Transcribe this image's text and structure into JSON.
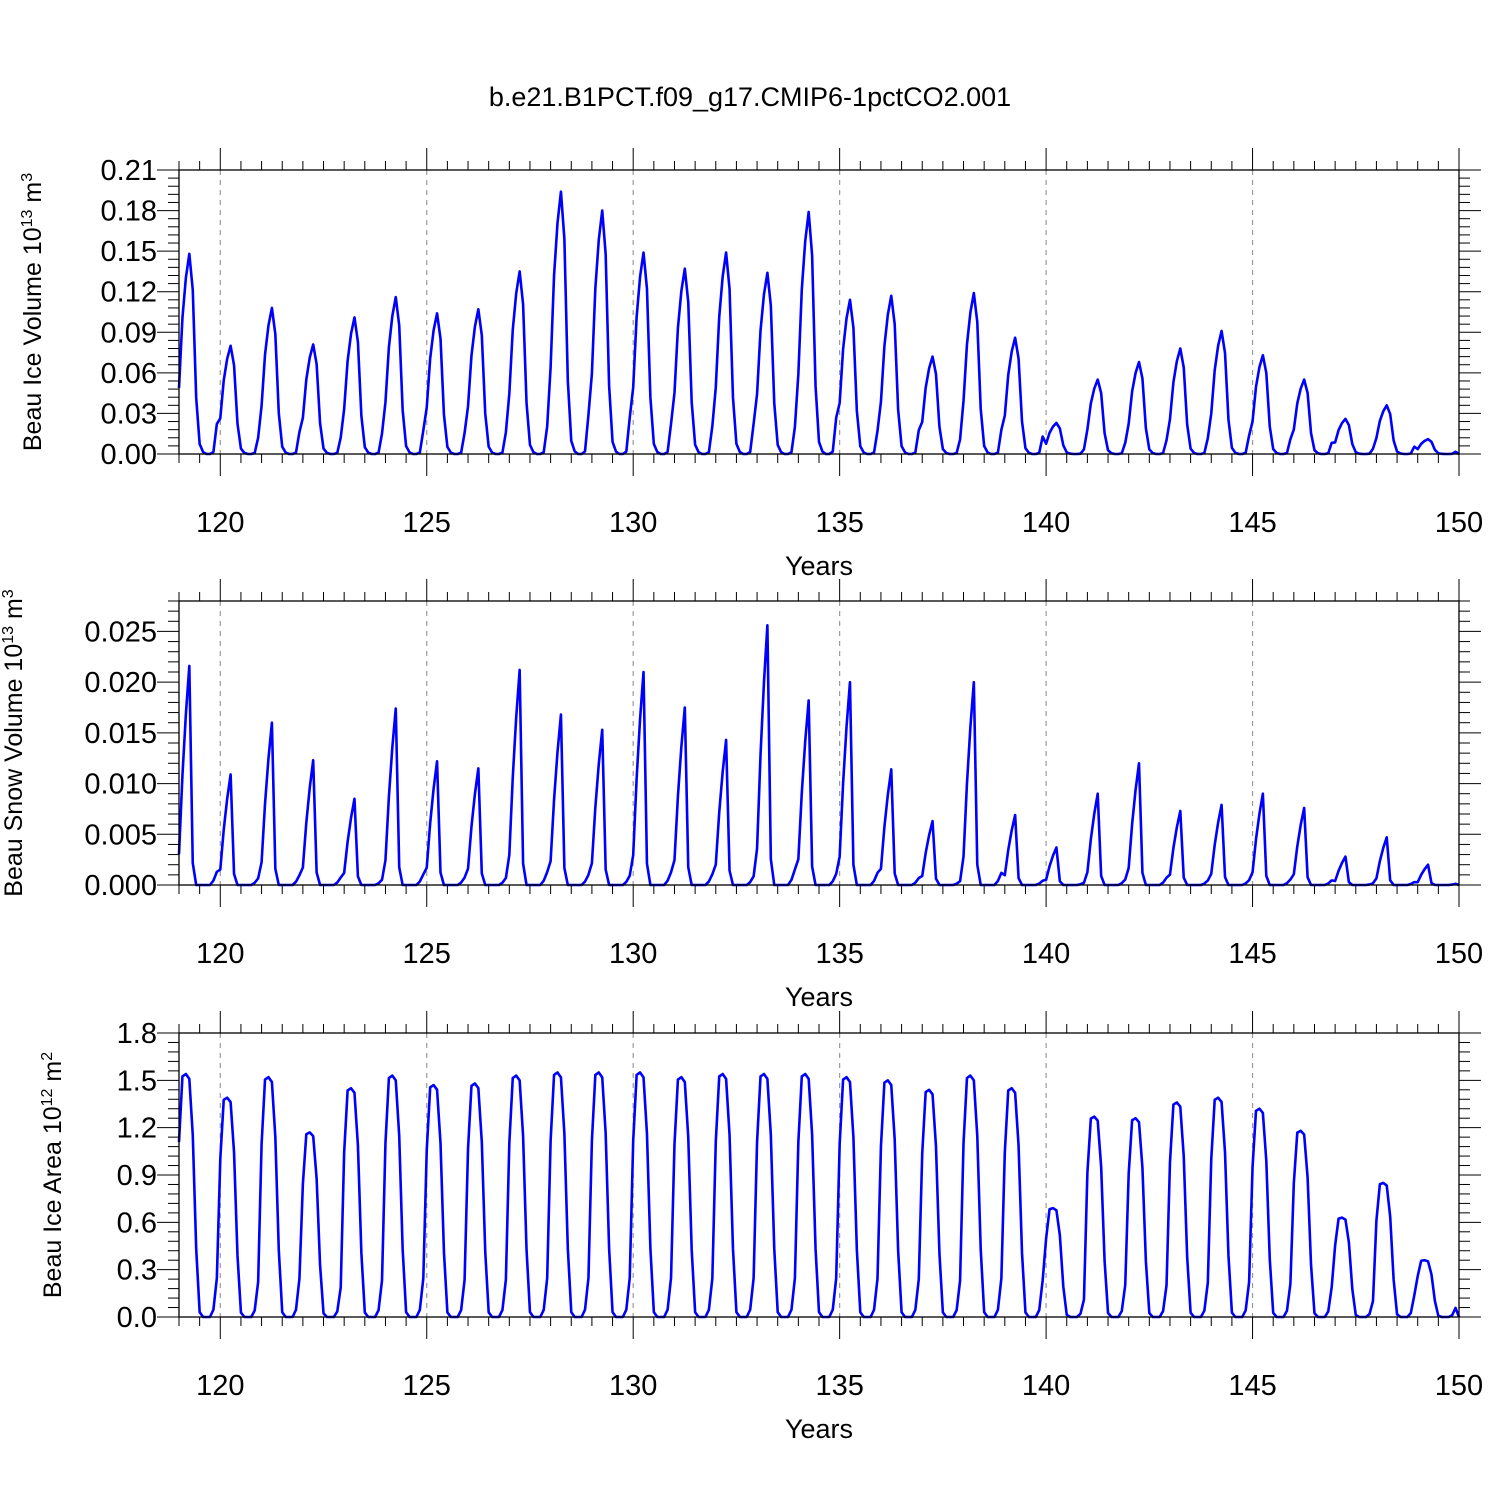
{
  "title": "b.e21.B1PCT.f09_g17.CMIP6-1pctCO2.001",
  "colors": {
    "series": "#0000ff",
    "axis": "#000000",
    "grid": "#999999"
  },
  "chart_data": [
    {
      "type": "line",
      "ylabel_main": "Beau Ice Volume 10",
      "ylabel_exp": "13",
      "ylabel_unit": " m",
      "ylabel_unit_exp": "3",
      "xlabel": "Years",
      "xlim": [
        119.0,
        150.0
      ],
      "ylim": [
        0.0,
        0.21
      ],
      "yticks": [
        "0.00",
        "0.03",
        "0.06",
        "0.09",
        "0.12",
        "0.15",
        "0.18",
        "0.21"
      ],
      "ytick_values": [
        0,
        0.03,
        0.06,
        0.09,
        0.12,
        0.15,
        0.18,
        0.21
      ],
      "xticks": [
        "120",
        "125",
        "130",
        "135",
        "140",
        "145",
        "150"
      ],
      "xtick_values": [
        120,
        125,
        130,
        135,
        140,
        145,
        150
      ],
      "grid_x": true,
      "seasonal_cycle": {
        "start_year": 119,
        "samples_per_year": 12,
        "shape": [
          0.33,
          0.68,
          0.88,
          1.0,
          0.82,
          0.28,
          0.05,
          0.01,
          0,
          0,
          0.01,
          0.15
        ]
      },
      "annual_peaks": [
        0.148,
        0.08,
        0.108,
        0.081,
        0.101,
        0.116,
        0.104,
        0.107,
        0.135,
        0.194,
        0.18,
        0.149,
        0.137,
        0.149,
        0.134,
        0.179,
        0.114,
        0.117,
        0.072,
        0.119,
        0.086,
        0.023,
        0.055,
        0.068,
        0.078,
        0.091,
        0.073,
        0.055,
        0.026,
        0.036,
        0.011
      ]
    },
    {
      "type": "line",
      "ylabel_main": "Beau Snow Volume 10",
      "ylabel_exp": "13",
      "ylabel_unit": " m",
      "ylabel_unit_exp": "3",
      "xlabel": "Years",
      "xlim": [
        119.0,
        150.0
      ],
      "ylim": [
        0.0,
        0.028
      ],
      "yticks": [
        "0.000",
        "0.005",
        "0.010",
        "0.015",
        "0.020",
        "0.025"
      ],
      "ytick_values": [
        0,
        0.005,
        0.01,
        0.015,
        0.02,
        0.025
      ],
      "xticks": [
        "120",
        "125",
        "130",
        "135",
        "140",
        "145",
        "150"
      ],
      "xtick_values": [
        120,
        125,
        130,
        135,
        140,
        145,
        150
      ],
      "grid_x": true,
      "seasonal_cycle": {
        "start_year": 119,
        "samples_per_year": 12,
        "shape": [
          0.14,
          0.5,
          0.78,
          1.0,
          0.1,
          0,
          0,
          0,
          0,
          0,
          0.02,
          0.06
        ]
      },
      "annual_peaks": [
        0.0216,
        0.0109,
        0.016,
        0.0123,
        0.0085,
        0.0174,
        0.0122,
        0.0115,
        0.0212,
        0.0168,
        0.0153,
        0.021,
        0.0175,
        0.0143,
        0.0256,
        0.0182,
        0.02,
        0.0114,
        0.0063,
        0.02,
        0.0069,
        0.0037,
        0.009,
        0.012,
        0.0073,
        0.0079,
        0.009,
        0.0076,
        0.0028,
        0.0047,
        0.002
      ]
    },
    {
      "type": "line",
      "ylabel_main": "Beau Ice Area 10",
      "ylabel_exp": "12",
      "ylabel_unit": " m",
      "ylabel_unit_exp": "2",
      "xlabel": "Years",
      "xlim": [
        119.0,
        150.0
      ],
      "ylim": [
        0.0,
        1.8
      ],
      "yticks": [
        "0.0",
        "0.3",
        "0.6",
        "0.9",
        "1.2",
        "1.5",
        "1.8"
      ],
      "ytick_values": [
        0,
        0.3,
        0.6,
        0.9,
        1.2,
        1.5,
        1.8
      ],
      "xticks": [
        "120",
        "125",
        "130",
        "135",
        "140",
        "145",
        "150"
      ],
      "xtick_values": [
        120,
        125,
        130,
        135,
        140,
        145,
        150
      ],
      "grid_x": true,
      "seasonal_cycle": {
        "start_year": 119,
        "samples_per_year": 12,
        "shape": [
          0.72,
          0.99,
          1.0,
          0.98,
          0.75,
          0.28,
          0.02,
          0,
          0,
          0,
          0.03,
          0.16
        ]
      },
      "annual_peaks": [
        1.54,
        1.39,
        1.52,
        1.17,
        1.45,
        1.53,
        1.47,
        1.48,
        1.53,
        1.55,
        1.55,
        1.55,
        1.52,
        1.54,
        1.54,
        1.54,
        1.52,
        1.5,
        1.44,
        1.53,
        1.45,
        0.69,
        1.27,
        1.26,
        1.36,
        1.39,
        1.32,
        1.18,
        0.63,
        0.85,
        0.36
      ]
    }
  ]
}
